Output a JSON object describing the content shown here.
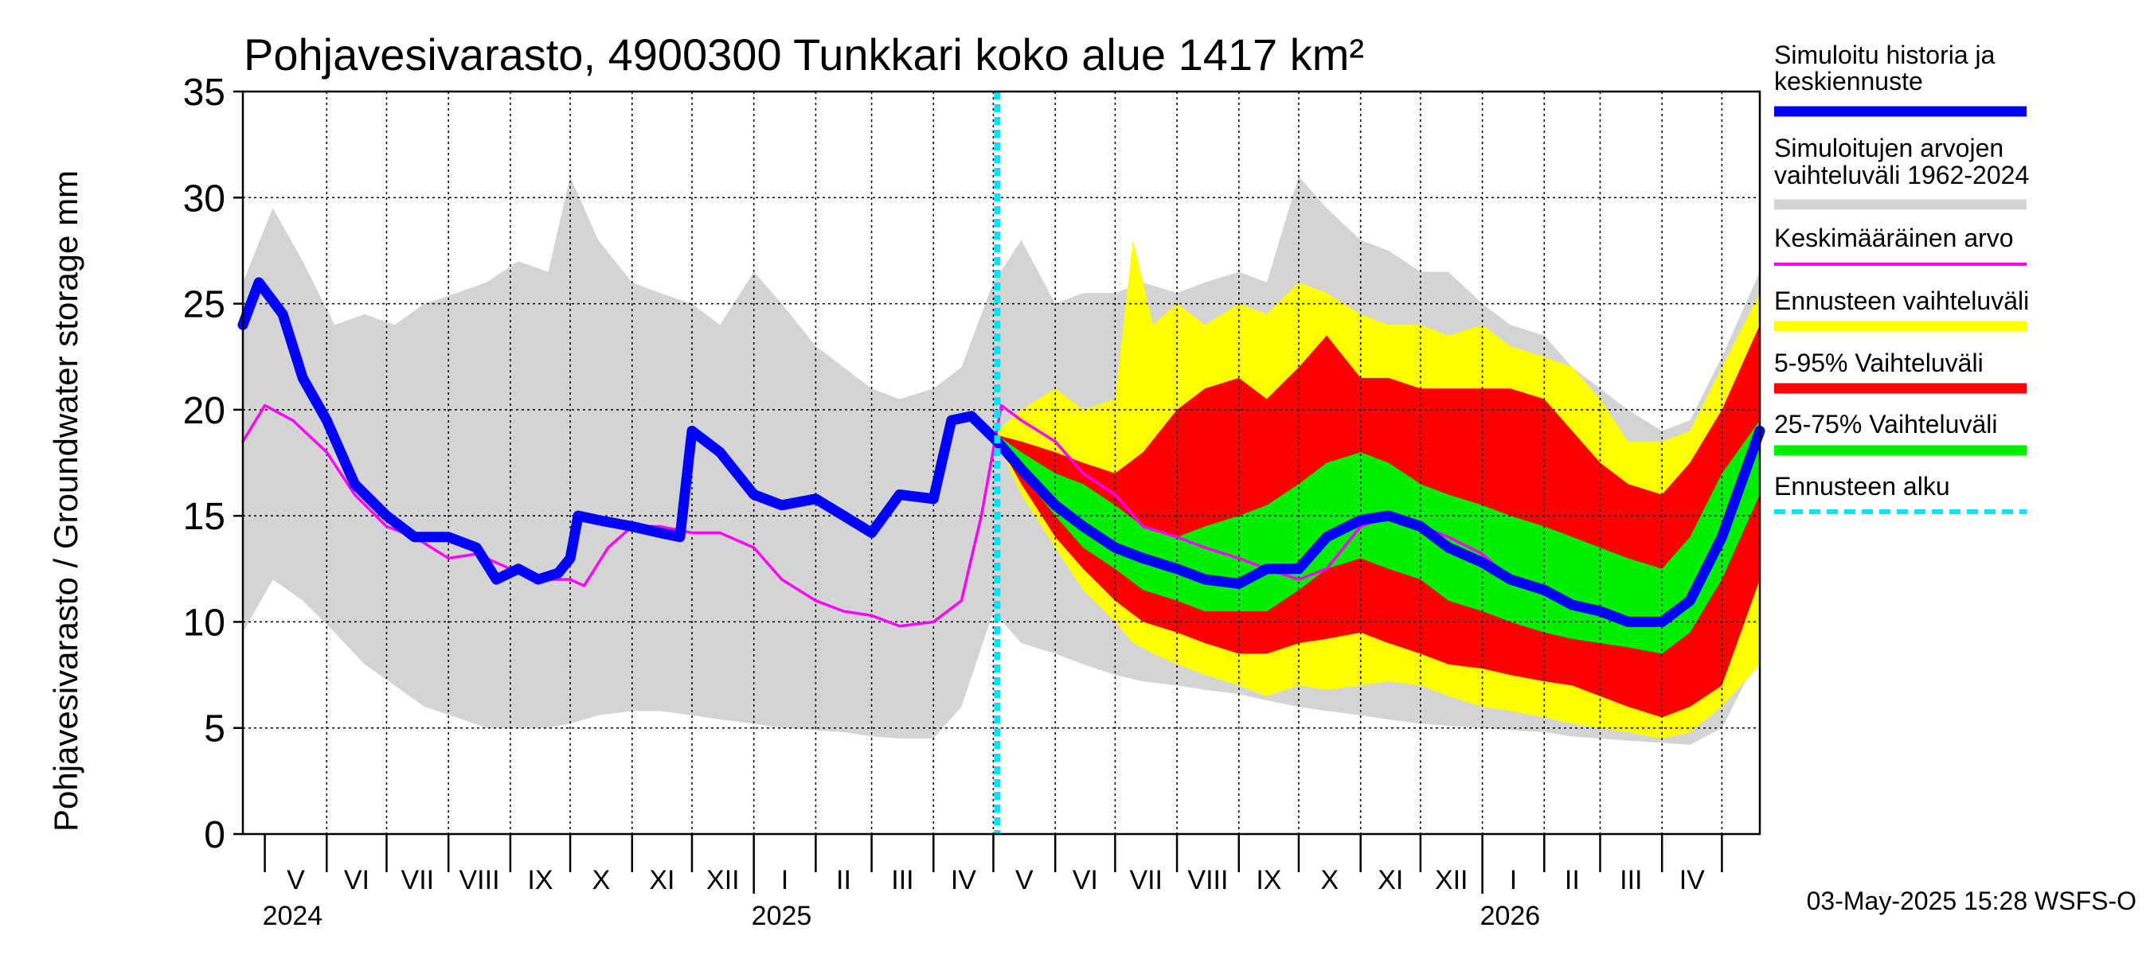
{
  "chart_data": {
    "type": "area",
    "title": "Pohjavesivarasto, 4900300 Tunkkari koko alue 1417 km²",
    "ylabel": "Pohjavesivarasto / Groundwater storage   mm",
    "ylim": [
      0,
      35
    ],
    "yticks": [
      0,
      5,
      10,
      15,
      20,
      25,
      30,
      35
    ],
    "xlim": [
      "2024-04-20",
      "2026-05-20"
    ],
    "forecast_start": "2025-05-03",
    "grid": true,
    "legend_position": "right",
    "months": [
      {
        "label": "V",
        "start": "2024-05-01",
        "end": "2024-06-01"
      },
      {
        "label": "VI",
        "start": "2024-06-01",
        "end": "2024-07-01"
      },
      {
        "label": "VII",
        "start": "2024-07-01",
        "end": "2024-08-01"
      },
      {
        "label": "VIII",
        "start": "2024-08-01",
        "end": "2024-09-01"
      },
      {
        "label": "IX",
        "start": "2024-09-01",
        "end": "2024-10-01"
      },
      {
        "label": "X",
        "start": "2024-10-01",
        "end": "2024-11-01"
      },
      {
        "label": "XI",
        "start": "2024-11-01",
        "end": "2024-12-01"
      },
      {
        "label": "XII",
        "start": "2024-12-01",
        "end": "2025-01-01"
      },
      {
        "label": "I",
        "start": "2025-01-01",
        "end": "2025-02-01"
      },
      {
        "label": "II",
        "start": "2025-02-01",
        "end": "2025-03-01"
      },
      {
        "label": "III",
        "start": "2025-03-01",
        "end": "2025-04-01"
      },
      {
        "label": "IV",
        "start": "2025-04-01",
        "end": "2025-05-01"
      },
      {
        "label": "V",
        "start": "2025-05-01",
        "end": "2025-06-01"
      },
      {
        "label": "VI",
        "start": "2025-06-01",
        "end": "2025-07-01"
      },
      {
        "label": "VII",
        "start": "2025-07-01",
        "end": "2025-08-01"
      },
      {
        "label": "VIII",
        "start": "2025-08-01",
        "end": "2025-09-01"
      },
      {
        "label": "IX",
        "start": "2025-09-01",
        "end": "2025-10-01"
      },
      {
        "label": "X",
        "start": "2025-10-01",
        "end": "2025-11-01"
      },
      {
        "label": "XI",
        "start": "2025-11-01",
        "end": "2025-12-01"
      },
      {
        "label": "XII",
        "start": "2025-12-01",
        "end": "2026-01-01"
      },
      {
        "label": "I",
        "start": "2026-01-01",
        "end": "2026-02-01"
      },
      {
        "label": "II",
        "start": "2026-02-01",
        "end": "2026-03-01"
      },
      {
        "label": "III",
        "start": "2026-03-01",
        "end": "2026-04-01"
      },
      {
        "label": "IV",
        "start": "2026-04-01",
        "end": "2026-05-01"
      }
    ],
    "years": [
      {
        "label": "2024",
        "date": "2024-05-01"
      },
      {
        "label": "2025",
        "date": "2025-01-01"
      },
      {
        "label": "2026",
        "date": "2026-01-01"
      }
    ],
    "legend": [
      {
        "label": "Simuloitu historia ja\nkeskiennuste",
        "color": "#0000ff",
        "style": "thick"
      },
      {
        "label": "Simuloitujen arvojen\nvaihteluväli 1962-2024",
        "color": "#d4d4d4",
        "style": "thick"
      },
      {
        "label": "Keskimääräinen arvo",
        "color": "#ff00ff",
        "style": "thin"
      },
      {
        "label": "Ennusteen vaihteluväli",
        "color": "#ffff00",
        "style": "thick"
      },
      {
        "label": "5-95% Vaihteluväli",
        "color": "#ff0000",
        "style": "thick"
      },
      {
        "label": "25-75% Vaihteluväli",
        "color": "#00ee00",
        "style": "thick"
      },
      {
        "label": "Ennusteen alku",
        "color": "#00e5ff",
        "style": "dashed"
      }
    ],
    "colors": {
      "history": "#0000ff",
      "range": "#d4d4d4",
      "mean": "#ff00ff",
      "forecast_range": "#ffff00",
      "p5_95": "#ff0000",
      "p25_75": "#00ee00",
      "forecast_start": "#00e5ff"
    },
    "series": {
      "range_band": {
        "dates": [
          "2024-04-20",
          "2024-05-05",
          "2024-05-20",
          "2024-06-05",
          "2024-06-20",
          "2024-07-05",
          "2024-07-20",
          "2024-08-05",
          "2024-08-20",
          "2024-09-05",
          "2024-09-20",
          "2024-10-01",
          "2024-10-15",
          "2024-11-01",
          "2024-11-15",
          "2024-12-01",
          "2024-12-15",
          "2025-01-01",
          "2025-01-15",
          "2025-02-01",
          "2025-02-15",
          "2025-03-01",
          "2025-03-15",
          "2025-04-01",
          "2025-04-15",
          "2025-05-01",
          "2025-05-15",
          "2025-06-01",
          "2025-06-15",
          "2025-07-01",
          "2025-07-15",
          "2025-08-01",
          "2025-08-15",
          "2025-09-01",
          "2025-09-15",
          "2025-10-01",
          "2025-10-15",
          "2025-11-01",
          "2025-11-15",
          "2025-12-01",
          "2025-12-15",
          "2026-01-01",
          "2026-01-15",
          "2026-02-01",
          "2026-02-15",
          "2026-03-01",
          "2026-03-15",
          "2026-04-01",
          "2026-04-15",
          "2026-05-01",
          "2026-05-20"
        ],
        "low": [
          9.5,
          12,
          11,
          9.5,
          8,
          7,
          6,
          5.5,
          5,
          5,
          5,
          5.2,
          5.6,
          5.8,
          5.8,
          5.6,
          5.4,
          5.2,
          5,
          4.9,
          4.8,
          4.6,
          4.5,
          4.5,
          6,
          10.5,
          9,
          8.5,
          8,
          7.5,
          7.2,
          7,
          6.8,
          6.6,
          6.3,
          6,
          5.8,
          5.6,
          5.4,
          5.2,
          5.1,
          5,
          4.9,
          4.8,
          4.6,
          4.5,
          4.4,
          4.3,
          4.2,
          5,
          8.5
        ],
        "high": [
          26,
          29.5,
          27,
          24,
          24.5,
          24,
          25,
          25.5,
          26,
          27,
          26.5,
          31,
          28,
          26,
          25.5,
          25,
          24,
          26.5,
          25,
          23,
          22,
          21,
          20.5,
          21,
          22,
          26,
          28,
          25,
          25.5,
          25.5,
          26,
          25.5,
          26,
          26.5,
          26,
          31,
          29.5,
          28,
          27.5,
          26.5,
          26.5,
          25,
          24,
          23.5,
          22,
          21,
          20,
          19,
          19.5,
          22.5,
          26.5
        ]
      },
      "forecast_band": {
        "dates": [
          "2025-05-03",
          "2025-05-15",
          "2025-06-01",
          "2025-06-15",
          "2025-07-01",
          "2025-07-10",
          "2025-07-20",
          "2025-08-01",
          "2025-08-15",
          "2025-09-01",
          "2025-09-15",
          "2025-10-01",
          "2025-10-15",
          "2025-11-01",
          "2025-11-15",
          "2025-12-01",
          "2025-12-15",
          "2026-01-01",
          "2026-01-15",
          "2026-02-01",
          "2026-02-15",
          "2026-03-01",
          "2026-03-15",
          "2026-04-01",
          "2026-04-15",
          "2026-05-01",
          "2026-05-20"
        ],
        "low": [
          18.5,
          16,
          13.5,
          11.5,
          10,
          9,
          8.5,
          8,
          7.5,
          7,
          6.5,
          7,
          6.8,
          7,
          7.2,
          7,
          6.5,
          6,
          5.8,
          5.5,
          5.2,
          5,
          4.8,
          4.5,
          4.8,
          6,
          8
        ],
        "high": [
          19,
          20,
          21,
          20,
          20.5,
          28,
          24,
          25,
          24,
          25,
          24.5,
          26,
          25.5,
          24.5,
          24,
          24,
          23.5,
          24,
          23,
          22.5,
          22,
          20.5,
          18.5,
          18.5,
          19,
          22,
          25.5
        ]
      },
      "p5_95_band": {
        "dates": [
          "2025-05-03",
          "2025-05-15",
          "2025-06-01",
          "2025-06-15",
          "2025-07-01",
          "2025-07-15",
          "2025-08-01",
          "2025-08-15",
          "2025-09-01",
          "2025-09-15",
          "2025-10-01",
          "2025-10-15",
          "2025-11-01",
          "2025-11-15",
          "2025-12-01",
          "2025-12-15",
          "2026-01-01",
          "2026-01-15",
          "2026-02-01",
          "2026-02-15",
          "2026-03-01",
          "2026-03-15",
          "2026-04-01",
          "2026-04-15",
          "2026-05-01",
          "2026-05-20"
        ],
        "low": [
          18.5,
          16.5,
          14,
          12.5,
          11,
          10,
          9.5,
          9,
          8.5,
          8.5,
          9,
          9.2,
          9.5,
          9,
          8.5,
          8,
          7.8,
          7.5,
          7.2,
          7,
          6.5,
          6,
          5.5,
          6,
          7,
          12
        ],
        "high": [
          18.8,
          18.5,
          18,
          17.5,
          17,
          18,
          20,
          21,
          21.5,
          20.5,
          22,
          23.5,
          21.5,
          21.5,
          21,
          21,
          21,
          21,
          20.5,
          19,
          17.5,
          16.5,
          16,
          17.5,
          20,
          24
        ]
      },
      "p25_75_band": {
        "dates": [
          "2025-05-03",
          "2025-05-15",
          "2025-06-01",
          "2025-06-15",
          "2025-07-01",
          "2025-07-15",
          "2025-08-01",
          "2025-08-15",
          "2025-09-01",
          "2025-09-15",
          "2025-10-01",
          "2025-10-15",
          "2025-11-01",
          "2025-11-15",
          "2025-12-01",
          "2025-12-15",
          "2026-01-01",
          "2026-01-15",
          "2026-02-01",
          "2026-02-15",
          "2026-03-01",
          "2026-03-15",
          "2026-04-01",
          "2026-04-15",
          "2026-05-01",
          "2026-05-20"
        ],
        "low": [
          18.5,
          17,
          15,
          13.5,
          12.5,
          11.5,
          11,
          10.5,
          10.5,
          10.5,
          11.5,
          12.5,
          13,
          12.5,
          12,
          11,
          10.5,
          10,
          9.5,
          9.2,
          9,
          8.8,
          8.5,
          9.5,
          12,
          16
        ],
        "high": [
          18.8,
          18,
          17,
          16.5,
          15.5,
          14.5,
          14,
          14.5,
          15,
          15.5,
          16.5,
          17.5,
          18,
          17.5,
          16.5,
          16,
          15.5,
          15,
          14.5,
          14,
          13.5,
          13,
          12.5,
          14,
          17,
          19.5
        ]
      },
      "mean": {
        "dates": [
          "2024-04-20",
          "2024-05-01",
          "2024-05-15",
          "2024-06-01",
          "2024-06-15",
          "2024-07-01",
          "2024-07-15",
          "2024-08-01",
          "2024-08-15",
          "2024-09-01",
          "2024-09-15",
          "2024-10-01",
          "2024-10-08",
          "2024-10-20",
          "2024-11-01",
          "2024-11-15",
          "2024-12-01",
          "2024-12-15",
          "2025-01-01",
          "2025-01-15",
          "2025-02-01",
          "2025-02-15",
          "2025-03-01",
          "2025-03-15",
          "2025-04-01",
          "2025-04-15",
          "2025-04-25",
          "2025-05-05",
          "2025-05-15",
          "2025-06-01",
          "2025-06-15",
          "2025-07-01",
          "2025-07-15",
          "2025-08-01",
          "2025-08-15",
          "2025-09-01",
          "2025-09-15",
          "2025-10-01",
          "2025-10-15",
          "2025-11-01",
          "2025-11-15",
          "2025-12-01",
          "2025-12-15",
          "2026-01-01",
          "2026-01-15",
          "2026-02-01",
          "2026-02-15",
          "2026-03-01",
          "2026-03-15",
          "2026-04-01",
          "2026-04-15",
          "2026-05-01",
          "2026-05-20"
        ],
        "values": [
          18.5,
          20.2,
          19.5,
          18,
          16,
          14.5,
          14,
          13,
          13.2,
          12.5,
          12,
          12,
          11.7,
          13.5,
          14.5,
          14.5,
          14.2,
          14.2,
          13.5,
          12,
          11,
          10.5,
          10.3,
          9.8,
          10,
          11,
          15,
          20.2,
          19.5,
          18.5,
          17,
          16,
          14.5,
          14,
          13.5,
          13,
          12.5,
          12,
          12.5,
          14.5,
          15,
          14.5,
          14,
          13.2,
          12,
          11.5,
          10.8,
          10.3,
          10,
          10,
          11,
          14,
          19
        ]
      },
      "history": {
        "dates": [
          "2024-04-20",
          "2024-04-28",
          "2024-05-10",
          "2024-05-20",
          "2024-06-01",
          "2024-06-15",
          "2024-07-01",
          "2024-07-15",
          "2024-08-01",
          "2024-08-15",
          "2024-08-25",
          "2024-09-05",
          "2024-09-15",
          "2024-09-25",
          "2024-10-01",
          "2024-10-05",
          "2024-10-15",
          "2024-11-01",
          "2024-11-15",
          "2024-11-25",
          "2024-12-01",
          "2024-12-15",
          "2025-01-01",
          "2025-01-15",
          "2025-02-01",
          "2025-02-15",
          "2025-03-01",
          "2025-03-15",
          "2025-04-01",
          "2025-04-10",
          "2025-04-20",
          "2025-05-03"
        ],
        "values": [
          24,
          26,
          24.5,
          21.5,
          19.5,
          16.5,
          15,
          14,
          14,
          13.5,
          12,
          12.5,
          12,
          12.3,
          13,
          15,
          14.8,
          14.5,
          14.2,
          14,
          19,
          18,
          16,
          15.5,
          15.8,
          15,
          14.2,
          16,
          15.8,
          19.5,
          19.7,
          18.5
        ]
      },
      "median_forecast": {
        "dates": [
          "2025-05-03",
          "2025-05-15",
          "2025-06-01",
          "2025-06-15",
          "2025-07-01",
          "2025-07-15",
          "2025-08-01",
          "2025-08-15",
          "2025-09-01",
          "2025-09-15",
          "2025-10-01",
          "2025-10-15",
          "2025-11-01",
          "2025-11-15",
          "2025-12-01",
          "2025-12-15",
          "2026-01-01",
          "2026-01-15",
          "2026-02-01",
          "2026-02-15",
          "2026-03-01",
          "2026-03-15",
          "2026-04-01",
          "2026-04-15",
          "2026-05-01",
          "2026-05-20"
        ],
        "values": [
          18.5,
          17.2,
          15.5,
          14.5,
          13.5,
          13,
          12.5,
          12,
          11.8,
          12.5,
          12.5,
          14,
          14.8,
          15,
          14.5,
          13.5,
          12.8,
          12,
          11.5,
          10.8,
          10.5,
          10,
          10,
          11,
          14,
          19
        ]
      }
    }
  },
  "footer": {
    "timestamp": "03-May-2025 15:28 WSFS-O"
  }
}
